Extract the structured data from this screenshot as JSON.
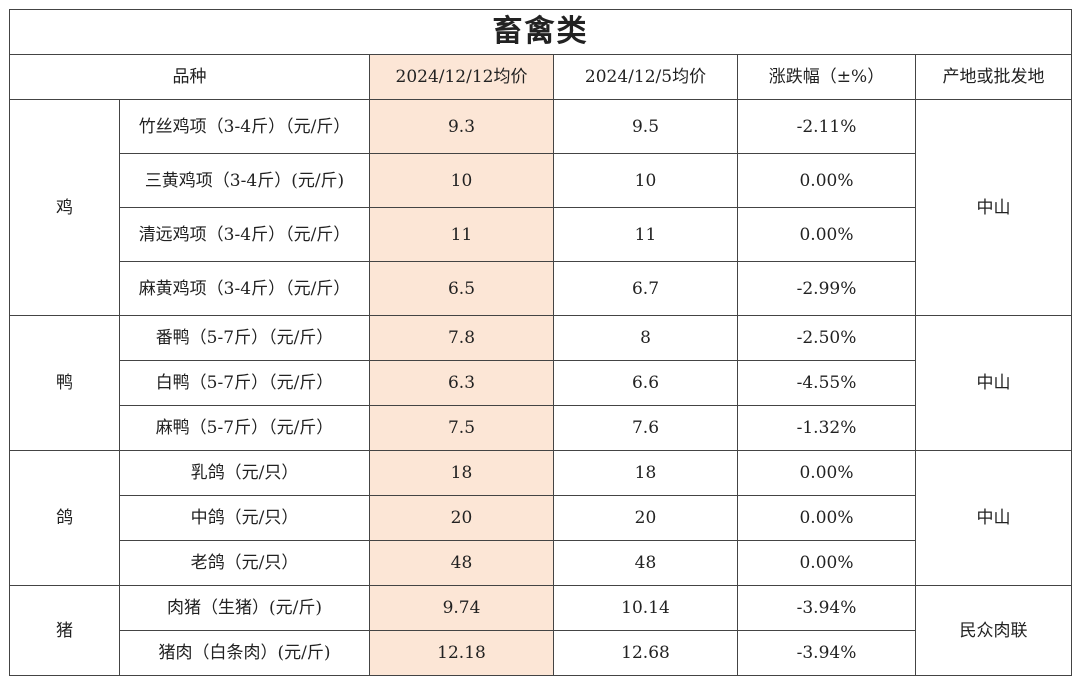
{
  "title": "畜禽类",
  "headers": {
    "variety": "品种",
    "price_current": "2024/12/12均价",
    "price_previous": "2024/12/5均价",
    "change": "涨跌幅（±%）",
    "origin": "产地或批发地"
  },
  "groups": [
    {
      "category": "鸡",
      "origin": "中山",
      "items": [
        {
          "name": "竹丝鸡项（3-4斤）（元/斤）",
          "current": "9.3",
          "previous": "9.5",
          "change": "-2.11%"
        },
        {
          "name": "三黄鸡项（3-4斤）(元/斤)",
          "current": "10",
          "previous": "10",
          "change": "0.00%"
        },
        {
          "name": "清远鸡项（3-4斤）（元/斤）",
          "current": "11",
          "previous": "11",
          "change": "0.00%"
        },
        {
          "name": "麻黄鸡项（3-4斤）（元/斤）",
          "current": "6.5",
          "previous": "6.7",
          "change": "-2.99%"
        }
      ]
    },
    {
      "category": "鸭",
      "origin": "中山",
      "items": [
        {
          "name": "番鸭（5-7斤）（元/斤）",
          "current": "7.8",
          "previous": "8",
          "change": "-2.50%"
        },
        {
          "name": "白鸭（5-7斤）（元/斤）",
          "current": "6.3",
          "previous": "6.6",
          "change": "-4.55%"
        },
        {
          "name": "麻鸭（5-7斤）（元/斤）",
          "current": "7.5",
          "previous": "7.6",
          "change": "-1.32%"
        }
      ]
    },
    {
      "category": "鸽",
      "origin": "中山",
      "items": [
        {
          "name": "乳鸽（元/只）",
          "current": "18",
          "previous": "18",
          "change": "0.00%"
        },
        {
          "name": "中鸽（元/只）",
          "current": "20",
          "previous": "20",
          "change": "0.00%"
        },
        {
          "name": "老鸽（元/只）",
          "current": "48",
          "previous": "48",
          "change": "0.00%"
        }
      ]
    },
    {
      "category": "猪",
      "origin": "民众肉联",
      "items": [
        {
          "name": "肉猪（生猪）(元/斤)",
          "current": "9.74",
          "previous": "10.14",
          "change": "-3.94%"
        },
        {
          "name": "猪肉（白条肉）(元/斤)",
          "current": "12.18",
          "previous": "12.68",
          "change": "-3.94%"
        }
      ]
    }
  ],
  "colors": {
    "highlight_column": "#fce6d6",
    "border": "#444444"
  }
}
